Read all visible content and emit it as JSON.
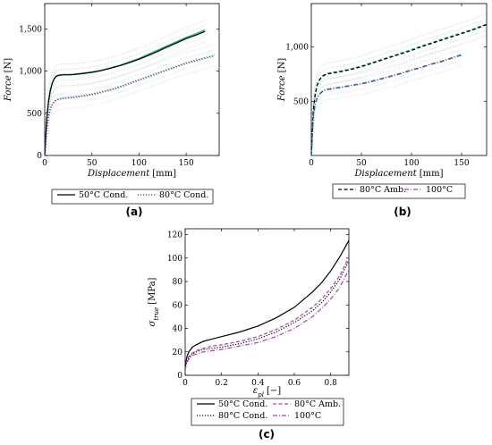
{
  "chart_data": [
    {
      "id": "a",
      "panel_label": "(a)",
      "type": "line",
      "xlabel_main": "Displacement",
      "xlabel_unit": "[mm]",
      "ylabel_main": "Force",
      "ylabel_unit": "[N]",
      "xlim": [
        0,
        185
      ],
      "ylim": [
        0,
        1800
      ],
      "xticks": [
        0,
        50,
        100,
        150
      ],
      "yticks": [
        0,
        500,
        1000,
        1500
      ],
      "tick_labels_x": [
        "0",
        "50",
        "100",
        "150"
      ],
      "tick_labels_y": [
        "0",
        "500",
        "1,000",
        "1,500"
      ],
      "legend": [
        {
          "name": "50°C Cond.",
          "color": "#000000",
          "dash": "solid"
        },
        {
          "name": "80°C Cond.",
          "color": "#7a1f8c",
          "dash": "dotted"
        }
      ],
      "series": [
        {
          "name": "50°C Cond.",
          "color": "#1b9e77",
          "dash": "solid",
          "x": [
            0,
            2,
            4,
            6,
            8,
            10,
            12,
            15,
            20,
            25,
            30,
            40,
            50,
            60,
            70,
            80,
            90,
            100,
            110,
            120,
            130,
            140,
            150,
            160,
            170
          ],
          "y": [
            0,
            420,
            640,
            780,
            860,
            910,
            940,
            955,
            960,
            960,
            962,
            975,
            990,
            1010,
            1040,
            1070,
            1110,
            1150,
            1200,
            1250,
            1300,
            1350,
            1400,
            1440,
            1490
          ]
        },
        {
          "name": "50°C Cond.",
          "color": "#000000",
          "dash": "solid",
          "x": [
            0,
            2,
            4,
            6,
            8,
            10,
            12,
            15,
            20,
            25,
            30,
            40,
            50,
            60,
            70,
            80,
            90,
            100,
            110,
            120,
            130,
            140,
            150,
            160,
            170
          ],
          "y": [
            0,
            410,
            630,
            770,
            855,
            905,
            935,
            950,
            955,
            955,
            958,
            970,
            985,
            1005,
            1035,
            1065,
            1100,
            1140,
            1185,
            1235,
            1285,
            1335,
            1385,
            1425,
            1470
          ]
        },
        {
          "name": "80°C Cond.",
          "color": "#1b9e77",
          "dash": "dotted",
          "x": [
            0,
            2,
            4,
            6,
            8,
            10,
            12,
            15,
            20,
            25,
            30,
            40,
            50,
            60,
            70,
            80,
            90,
            100,
            110,
            120,
            130,
            140,
            150,
            160,
            170,
            180
          ],
          "y": [
            0,
            300,
            460,
            560,
            610,
            640,
            660,
            675,
            685,
            690,
            695,
            710,
            730,
            755,
            785,
            820,
            860,
            900,
            940,
            980,
            1020,
            1060,
            1100,
            1130,
            1160,
            1190
          ]
        },
        {
          "name": "80°C Cond.",
          "color": "#7a1f8c",
          "dash": "dotted",
          "x": [
            0,
            2,
            4,
            6,
            8,
            10,
            12,
            15,
            20,
            25,
            30,
            40,
            50,
            60,
            70,
            80,
            90,
            100,
            110,
            120,
            130,
            140,
            150,
            160,
            170,
            180
          ],
          "y": [
            0,
            290,
            450,
            550,
            600,
            630,
            650,
            665,
            675,
            680,
            685,
            700,
            720,
            745,
            775,
            810,
            850,
            890,
            930,
            970,
            1010,
            1050,
            1090,
            1120,
            1150,
            1180
          ]
        }
      ]
    },
    {
      "id": "b",
      "panel_label": "(b)",
      "type": "line",
      "xlabel_main": "Displacement",
      "xlabel_unit": "[mm]",
      "ylabel_main": "Force",
      "ylabel_unit": "[N]",
      "xlim": [
        0,
        175
      ],
      "ylim": [
        0,
        1400
      ],
      "xticks": [
        0,
        50,
        100,
        150
      ],
      "yticks": [
        500,
        1000
      ],
      "tick_labels_x": [
        "0",
        "50",
        "100",
        "150"
      ],
      "tick_labels_y": [
        "500",
        "1,000"
      ],
      "legend": [
        {
          "name": "80°C Amb.",
          "color": "#000000",
          "dash": "dashed"
        },
        {
          "name": "100°C",
          "color": "#b03cb0",
          "dash": "dashdot"
        }
      ],
      "series": [
        {
          "name": "80°C Amb.",
          "color": "#1b9e77",
          "dash": "dashed",
          "x": [
            0,
            2,
            4,
            6,
            8,
            10,
            12,
            15,
            20,
            30,
            40,
            50,
            60,
            70,
            80,
            90,
            100,
            110,
            120,
            130,
            140,
            150,
            160,
            170,
            175
          ],
          "y": [
            0,
            420,
            580,
            660,
            700,
            725,
            740,
            755,
            765,
            780,
            800,
            825,
            855,
            885,
            915,
            945,
            975,
            1010,
            1040,
            1070,
            1100,
            1130,
            1160,
            1195,
            1210
          ]
        },
        {
          "name": "80°C Amb.",
          "color": "#000000",
          "dash": "dashed",
          "x": [
            0,
            2,
            4,
            6,
            8,
            10,
            12,
            15,
            20,
            30,
            40,
            50,
            60,
            70,
            80,
            90,
            100,
            110,
            120,
            130,
            140,
            150,
            160,
            170,
            175
          ],
          "y": [
            0,
            410,
            570,
            650,
            692,
            718,
            733,
            748,
            758,
            773,
            793,
            818,
            848,
            878,
            908,
            938,
            968,
            1003,
            1033,
            1063,
            1093,
            1123,
            1153,
            1188,
            1205
          ]
        },
        {
          "name": "100°C",
          "color": "#b03cb0",
          "dash": "dashdot",
          "x": [
            0,
            2,
            4,
            6,
            8,
            10,
            12,
            15,
            20,
            30,
            40,
            50,
            60,
            70,
            80,
            90,
            100,
            110,
            120,
            130,
            140,
            150
          ],
          "y": [
            0,
            360,
            480,
            535,
            565,
            585,
            598,
            610,
            618,
            632,
            648,
            665,
            685,
            710,
            735,
            760,
            790,
            815,
            845,
            870,
            900,
            930
          ]
        },
        {
          "name": "100°C",
          "color": "#1b6f8c",
          "dash": "dashdot",
          "x": [
            0,
            2,
            4,
            6,
            8,
            10,
            12,
            15,
            20,
            30,
            40,
            50,
            60,
            70,
            80,
            90,
            100,
            110,
            120,
            130,
            140,
            150
          ],
          "y": [
            0,
            355,
            475,
            530,
            560,
            580,
            593,
            605,
            613,
            627,
            643,
            660,
            680,
            705,
            730,
            755,
            785,
            810,
            840,
            865,
            895,
            925
          ]
        }
      ]
    },
    {
      "id": "c",
      "panel_label": "(c)",
      "type": "line",
      "xlabel_main": "ε",
      "xlabel_sub": "pl",
      "xlabel_unit": "[−]",
      "ylabel_main": "σ",
      "ylabel_sub": "true",
      "ylabel_unit": "[MPa]",
      "xlim": [
        0,
        0.9
      ],
      "ylim": [
        0,
        125
      ],
      "xticks": [
        0,
        0.2,
        0.4,
        0.6,
        0.8
      ],
      "yticks": [
        0,
        20,
        40,
        60,
        80,
        100,
        120
      ],
      "tick_labels_x": [
        "0",
        "0.2",
        "0.4",
        "0.6",
        "0.8"
      ],
      "tick_labels_y": [
        "0",
        "20",
        "40",
        "60",
        "80",
        "100",
        "120"
      ],
      "legend": [
        {
          "name": "50°C Cond.",
          "color": "#000000",
          "dash": "solid"
        },
        {
          "name": "80°C Amb.",
          "color": "#b03cb0",
          "dash": "dashed"
        },
        {
          "name": "80°C Cond.",
          "color": "#000000",
          "dash": "dotted"
        },
        {
          "name": "100°C",
          "color": "#b03cb0",
          "dash": "dashdot"
        }
      ],
      "series": [
        {
          "name": "50°C Cond.",
          "color": "#000000",
          "dash": "solid",
          "x": [
            0,
            0.005,
            0.01,
            0.02,
            0.04,
            0.06,
            0.1,
            0.15,
            0.2,
            0.3,
            0.4,
            0.5,
            0.6,
            0.7,
            0.75,
            0.8,
            0.85,
            0.9
          ],
          "y": [
            6,
            12,
            16,
            20,
            24,
            26,
            29,
            31,
            33,
            37,
            42,
            49,
            58,
            71,
            79,
            89,
            101,
            115
          ]
        },
        {
          "name": "80°C Amb.",
          "color": "#b03cb0",
          "dash": "dashed",
          "x": [
            0,
            0.005,
            0.01,
            0.02,
            0.04,
            0.06,
            0.1,
            0.15,
            0.2,
            0.3,
            0.4,
            0.5,
            0.6,
            0.7,
            0.75,
            0.8,
            0.85,
            0.9
          ],
          "y": [
            5,
            10,
            13,
            16,
            19,
            21,
            23,
            25,
            26,
            29,
            33,
            39,
            47,
            58,
            65,
            74,
            85,
            101
          ]
        },
        {
          "name": "80°C Cond.",
          "color": "#000000",
          "dash": "dotted",
          "x": [
            0,
            0.005,
            0.01,
            0.02,
            0.04,
            0.06,
            0.1,
            0.15,
            0.2,
            0.3,
            0.4,
            0.5,
            0.6,
            0.7,
            0.75,
            0.8,
            0.85,
            0.9
          ],
          "y": [
            5,
            9,
            12,
            15,
            18,
            20,
            22,
            23,
            24,
            27,
            31,
            37,
            45,
            55,
            62,
            71,
            82,
            98
          ]
        },
        {
          "name": "100°C",
          "color": "#b03cb0",
          "dash": "dashdot",
          "x": [
            0,
            0.005,
            0.01,
            0.02,
            0.04,
            0.06,
            0.1,
            0.15,
            0.2,
            0.3,
            0.4,
            0.5,
            0.6,
            0.7,
            0.75,
            0.8,
            0.85,
            0.9
          ],
          "y": [
            4,
            9,
            11,
            14,
            17,
            18,
            20,
            21,
            22,
            25,
            28,
            33,
            40,
            50,
            57,
            65,
            75,
            90
          ]
        }
      ]
    }
  ]
}
